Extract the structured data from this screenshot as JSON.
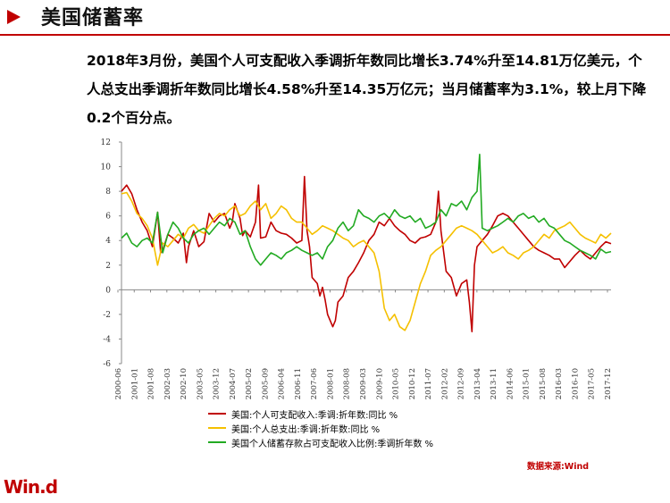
{
  "header": {
    "title": "美国储蓄率"
  },
  "summary": "2018年3月份，美国个人可支配收入季调折年数同比增长3.74%升至14.81万亿美元，个人总支出季调折年数同比增长4.58%升至14.35万亿元；当月储蓄率为3.1%，较上月下降0.2个百分点。",
  "colors": {
    "accent": "#c00000",
    "income": "#c00000",
    "spending": "#f5c000",
    "saving": "#22aa22"
  },
  "chart_data": {
    "type": "line",
    "ylim": [
      -6,
      12
    ],
    "yticks": [
      "12",
      "10",
      "8",
      "6",
      "4",
      "2",
      "0",
      "-2",
      "-4",
      "-6"
    ],
    "x_labels": [
      "2000-06",
      "2001-01",
      "2001-08",
      "2002-03",
      "2002-10",
      "2003-05",
      "2003-12",
      "2004-07",
      "2005-02",
      "2005-09",
      "2006-04",
      "2006-11",
      "2007-06",
      "2008-01",
      "2008-08",
      "2009-03",
      "2009-10",
      "2010-05",
      "2010-12",
      "2011-07",
      "2012-02",
      "2012-09",
      "2013-04",
      "2013-11",
      "2014-06",
      "2015-01",
      "2015-08",
      "2016-03",
      "2016-10",
      "2017-05",
      "2017-12"
    ],
    "series": [
      {
        "name": "美国:个人可支配收入:季调:折年数:同比 %",
        "color": "#c00000",
        "points": [
          [
            0,
            8.0
          ],
          [
            1,
            8.5
          ],
          [
            2,
            7.8
          ],
          [
            3,
            6.5
          ],
          [
            4,
            5.5
          ],
          [
            5,
            4.8
          ],
          [
            6,
            3.5
          ],
          [
            7,
            6.3
          ],
          [
            7.6,
            3.0
          ],
          [
            8,
            3.2
          ],
          [
            9,
            4.5
          ],
          [
            10,
            4.2
          ],
          [
            11,
            3.8
          ],
          [
            12,
            4.6
          ],
          [
            12.6,
            2.2
          ],
          [
            13,
            3.5
          ],
          [
            14,
            4.8
          ],
          [
            15,
            3.5
          ],
          [
            16,
            3.9
          ],
          [
            17,
            6.2
          ],
          [
            18,
            5.5
          ],
          [
            19,
            6.0
          ],
          [
            20,
            6.2
          ],
          [
            21,
            5.0
          ],
          [
            21.5,
            5.5
          ],
          [
            22,
            7.0
          ],
          [
            23,
            5.8
          ],
          [
            23.5,
            4.4
          ],
          [
            24,
            4.8
          ],
          [
            25,
            4.3
          ],
          [
            26,
            5.5
          ],
          [
            26.6,
            8.5
          ],
          [
            27,
            4.2
          ],
          [
            28,
            4.3
          ],
          [
            29,
            5.5
          ],
          [
            30,
            4.8
          ],
          [
            31,
            4.6
          ],
          [
            32,
            4.5
          ],
          [
            33,
            4.2
          ],
          [
            34,
            3.8
          ],
          [
            35,
            4.0
          ],
          [
            35.5,
            9.2
          ],
          [
            36,
            4.8
          ],
          [
            36.5,
            3.5
          ],
          [
            37,
            1.0
          ],
          [
            38,
            0.5
          ],
          [
            38.5,
            -0.5
          ],
          [
            39,
            0.2
          ],
          [
            39.5,
            -0.8
          ],
          [
            40,
            -2.0
          ],
          [
            41,
            -3.0
          ],
          [
            41.5,
            -2.5
          ],
          [
            42,
            -1.0
          ],
          [
            43,
            -0.5
          ],
          [
            44,
            1.0
          ],
          [
            45,
            1.5
          ],
          [
            46,
            2.2
          ],
          [
            47,
            3.0
          ],
          [
            48,
            4.0
          ],
          [
            49,
            4.5
          ],
          [
            50,
            5.5
          ],
          [
            51,
            5.2
          ],
          [
            52,
            5.8
          ],
          [
            53,
            5.2
          ],
          [
            54,
            4.8
          ],
          [
            55,
            4.5
          ],
          [
            56,
            4.0
          ],
          [
            57,
            3.8
          ],
          [
            58,
            4.2
          ],
          [
            59,
            4.3
          ],
          [
            60,
            4.5
          ],
          [
            61,
            5.5
          ],
          [
            61.5,
            8.0
          ],
          [
            62,
            4.8
          ],
          [
            63,
            1.5
          ],
          [
            64,
            1.0
          ],
          [
            65,
            -0.5
          ],
          [
            66,
            0.5
          ],
          [
            67,
            0.8
          ],
          [
            67.5,
            -1.0
          ],
          [
            68,
            -3.4
          ],
          [
            68.5,
            2.0
          ],
          [
            69,
            3.5
          ],
          [
            70,
            4.0
          ],
          [
            71,
            4.5
          ],
          [
            72,
            5.2
          ],
          [
            73,
            6.0
          ],
          [
            74,
            6.2
          ],
          [
            75,
            6.0
          ],
          [
            76,
            5.5
          ],
          [
            77,
            5.0
          ],
          [
            78,
            4.5
          ],
          [
            79,
            4.0
          ],
          [
            80,
            3.5
          ],
          [
            81,
            3.2
          ],
          [
            82,
            3.0
          ],
          [
            83,
            2.8
          ],
          [
            84,
            2.5
          ],
          [
            85,
            2.5
          ],
          [
            86,
            1.8
          ],
          [
            87,
            2.3
          ],
          [
            88,
            2.8
          ],
          [
            89,
            3.2
          ],
          [
            90,
            2.8
          ],
          [
            91,
            2.5
          ],
          [
            92,
            3.0
          ],
          [
            93,
            3.5
          ],
          [
            94,
            3.9
          ],
          [
            95,
            3.74
          ]
        ]
      },
      {
        "name": "美国:个人总支出:季调:折年数:同比 %",
        "color": "#f5c000",
        "points": [
          [
            0,
            7.8
          ],
          [
            1,
            7.9
          ],
          [
            2,
            7.2
          ],
          [
            3,
            6.2
          ],
          [
            4,
            5.8
          ],
          [
            5,
            5.2
          ],
          [
            6,
            4.2
          ],
          [
            7,
            2.0
          ],
          [
            8,
            3.8
          ],
          [
            9,
            3.5
          ],
          [
            10,
            4.0
          ],
          [
            11,
            4.5
          ],
          [
            12,
            4.2
          ],
          [
            13,
            5.0
          ],
          [
            14,
            5.3
          ],
          [
            15,
            4.8
          ],
          [
            16,
            4.6
          ],
          [
            17,
            5.2
          ],
          [
            18,
            5.8
          ],
          [
            19,
            6.2
          ],
          [
            20,
            6.0
          ],
          [
            21,
            6.5
          ],
          [
            22,
            6.8
          ],
          [
            23,
            6.0
          ],
          [
            24,
            6.2
          ],
          [
            25,
            6.8
          ],
          [
            26,
            7.2
          ],
          [
            27,
            6.5
          ],
          [
            28,
            7.0
          ],
          [
            29,
            5.8
          ],
          [
            30,
            6.2
          ],
          [
            31,
            6.8
          ],
          [
            32,
            6.5
          ],
          [
            33,
            5.8
          ],
          [
            34,
            5.5
          ],
          [
            35,
            5.5
          ],
          [
            36,
            5.0
          ],
          [
            37,
            4.5
          ],
          [
            38,
            4.8
          ],
          [
            39,
            5.2
          ],
          [
            40,
            5.0
          ],
          [
            41,
            4.8
          ],
          [
            42,
            4.5
          ],
          [
            43,
            4.2
          ],
          [
            44,
            4.0
          ],
          [
            45,
            3.5
          ],
          [
            46,
            3.8
          ],
          [
            47,
            4.0
          ],
          [
            48,
            3.5
          ],
          [
            49,
            3.0
          ],
          [
            50,
            1.5
          ],
          [
            51,
            -1.5
          ],
          [
            52,
            -2.5
          ],
          [
            53,
            -2.0
          ],
          [
            54,
            -3.0
          ],
          [
            55,
            -3.3
          ],
          [
            56,
            -2.5
          ],
          [
            57,
            -1.0
          ],
          [
            58,
            0.5
          ],
          [
            59,
            1.5
          ],
          [
            60,
            2.8
          ],
          [
            61,
            3.2
          ],
          [
            62,
            3.5
          ],
          [
            63,
            4.0
          ],
          [
            64,
            4.5
          ],
          [
            65,
            5.0
          ],
          [
            66,
            5.2
          ],
          [
            67,
            5.0
          ],
          [
            68,
            4.8
          ],
          [
            69,
            4.5
          ],
          [
            70,
            4.0
          ],
          [
            71,
            3.5
          ],
          [
            72,
            3.0
          ],
          [
            73,
            3.2
          ],
          [
            74,
            3.5
          ],
          [
            75,
            3.0
          ],
          [
            76,
            2.8
          ],
          [
            77,
            2.5
          ],
          [
            78,
            3.0
          ],
          [
            79,
            3.2
          ],
          [
            80,
            3.5
          ],
          [
            81,
            4.0
          ],
          [
            82,
            4.5
          ],
          [
            83,
            4.2
          ],
          [
            84,
            4.8
          ],
          [
            85,
            5.0
          ],
          [
            86,
            5.2
          ],
          [
            87,
            5.5
          ],
          [
            88,
            5.0
          ],
          [
            89,
            4.5
          ],
          [
            90,
            4.2
          ],
          [
            91,
            4.0
          ],
          [
            92,
            3.8
          ],
          [
            93,
            4.5
          ],
          [
            94,
            4.2
          ],
          [
            95,
            4.6
          ]
        ]
      },
      {
        "name": "美国个人储蓄存款占可支配收入比例:季调折年数 %",
        "color": "#22aa22",
        "points": [
          [
            0,
            4.2
          ],
          [
            1,
            4.6
          ],
          [
            2,
            3.8
          ],
          [
            3,
            3.5
          ],
          [
            4,
            4.0
          ],
          [
            5,
            4.2
          ],
          [
            6,
            3.8
          ],
          [
            7,
            6.3
          ],
          [
            8,
            3.0
          ],
          [
            9,
            4.5
          ],
          [
            10,
            5.5
          ],
          [
            11,
            5.0
          ],
          [
            12,
            4.2
          ],
          [
            13,
            3.8
          ],
          [
            14,
            4.5
          ],
          [
            15,
            4.8
          ],
          [
            16,
            5.0
          ],
          [
            17,
            4.5
          ],
          [
            18,
            5.0
          ],
          [
            19,
            5.5
          ],
          [
            20,
            5.2
          ],
          [
            21,
            5.8
          ],
          [
            22,
            5.5
          ],
          [
            23,
            4.5
          ],
          [
            24,
            4.8
          ],
          [
            25,
            3.5
          ],
          [
            26,
            2.5
          ],
          [
            27,
            2.0
          ],
          [
            28,
            2.5
          ],
          [
            29,
            3.0
          ],
          [
            30,
            2.8
          ],
          [
            31,
            2.5
          ],
          [
            32,
            3.0
          ],
          [
            33,
            3.2
          ],
          [
            34,
            3.5
          ],
          [
            35,
            3.2
          ],
          [
            36,
            3.0
          ],
          [
            37,
            2.8
          ],
          [
            38,
            3.0
          ],
          [
            39,
            2.5
          ],
          [
            40,
            3.5
          ],
          [
            41,
            4.0
          ],
          [
            42,
            5.0
          ],
          [
            43,
            5.5
          ],
          [
            44,
            4.8
          ],
          [
            45,
            5.2
          ],
          [
            46,
            6.5
          ],
          [
            47,
            6.0
          ],
          [
            48,
            5.8
          ],
          [
            49,
            5.5
          ],
          [
            50,
            6.0
          ],
          [
            51,
            6.2
          ],
          [
            52,
            5.8
          ],
          [
            53,
            6.5
          ],
          [
            54,
            6.0
          ],
          [
            55,
            5.8
          ],
          [
            56,
            6.0
          ],
          [
            57,
            5.5
          ],
          [
            58,
            5.8
          ],
          [
            59,
            5.0
          ],
          [
            60,
            5.2
          ],
          [
            61,
            5.5
          ],
          [
            62,
            6.5
          ],
          [
            63,
            6.0
          ],
          [
            64,
            7.0
          ],
          [
            65,
            6.8
          ],
          [
            66,
            7.2
          ],
          [
            67,
            6.5
          ],
          [
            68,
            7.5
          ],
          [
            69,
            8.0
          ],
          [
            69.5,
            11.0
          ],
          [
            70,
            5.0
          ],
          [
            71,
            4.8
          ],
          [
            72,
            5.0
          ],
          [
            73,
            5.2
          ],
          [
            74,
            5.5
          ],
          [
            75,
            5.8
          ],
          [
            76,
            5.5
          ],
          [
            77,
            6.0
          ],
          [
            78,
            6.2
          ],
          [
            79,
            5.8
          ],
          [
            80,
            6.0
          ],
          [
            81,
            5.5
          ],
          [
            82,
            5.8
          ],
          [
            83,
            5.2
          ],
          [
            84,
            5.0
          ],
          [
            85,
            4.5
          ],
          [
            86,
            4.0
          ],
          [
            87,
            3.8
          ],
          [
            88,
            3.5
          ],
          [
            89,
            3.2
          ],
          [
            90,
            3.0
          ],
          [
            91,
            2.8
          ],
          [
            92,
            2.5
          ],
          [
            93,
            3.3
          ],
          [
            94,
            3.0
          ],
          [
            95,
            3.1
          ]
        ]
      }
    ]
  },
  "source": "数据来源:Wind",
  "logo": "Win.d"
}
